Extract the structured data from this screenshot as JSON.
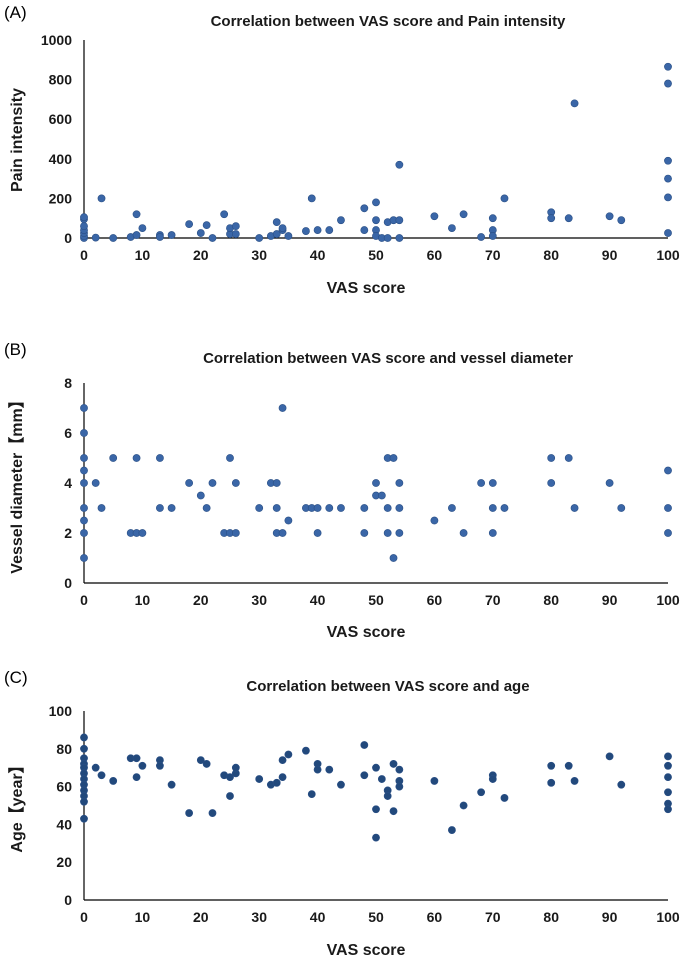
{
  "chart_data": [
    {
      "type": "scatter",
      "panel_label": "(A)",
      "title": "Correlation between VAS score and Pain intensity",
      "xlabel": "VAS score",
      "ylabel": "Pain intensity",
      "xlim": [
        0,
        100
      ],
      "ylim": [
        0,
        1000
      ],
      "xticks": [
        0,
        10,
        20,
        30,
        40,
        50,
        60,
        70,
        80,
        90,
        100
      ],
      "yticks": [
        0,
        200,
        400,
        600,
        800,
        1000
      ],
      "grid": false,
      "color": "#3a66a7",
      "points": [
        [
          0,
          0
        ],
        [
          0,
          10
        ],
        [
          0,
          25
        ],
        [
          0,
          40
        ],
        [
          0,
          60
        ],
        [
          0,
          95
        ],
        [
          0,
          105
        ],
        [
          2,
          2
        ],
        [
          3,
          200
        ],
        [
          5,
          0
        ],
        [
          8,
          5
        ],
        [
          9,
          15
        ],
        [
          9,
          120
        ],
        [
          10,
          50
        ],
        [
          13,
          15
        ],
        [
          13,
          5
        ],
        [
          15,
          15
        ],
        [
          18,
          70
        ],
        [
          20,
          25
        ],
        [
          21,
          65
        ],
        [
          22,
          0
        ],
        [
          24,
          120
        ],
        [
          25,
          20
        ],
        [
          25,
          50
        ],
        [
          26,
          20
        ],
        [
          26,
          60
        ],
        [
          30,
          0
        ],
        [
          32,
          10
        ],
        [
          33,
          20
        ],
        [
          33,
          80
        ],
        [
          34,
          40
        ],
        [
          34,
          50
        ],
        [
          35,
          10
        ],
        [
          38,
          35
        ],
        [
          39,
          200
        ],
        [
          40,
          40
        ],
        [
          42,
          40
        ],
        [
          44,
          90
        ],
        [
          48,
          150
        ],
        [
          48,
          40
        ],
        [
          50,
          180
        ],
        [
          50,
          90
        ],
        [
          50,
          40
        ],
        [
          50,
          10
        ],
        [
          51,
          0
        ],
        [
          52,
          80
        ],
        [
          52,
          0
        ],
        [
          53,
          90
        ],
        [
          54,
          90
        ],
        [
          54,
          0
        ],
        [
          54,
          370
        ],
        [
          60,
          110
        ],
        [
          63,
          50
        ],
        [
          65,
          120
        ],
        [
          68,
          5
        ],
        [
          70,
          100
        ],
        [
          70,
          40
        ],
        [
          70,
          10
        ],
        [
          72,
          200
        ],
        [
          80,
          130
        ],
        [
          80,
          100
        ],
        [
          83,
          100
        ],
        [
          84,
          680
        ],
        [
          90,
          110
        ],
        [
          92,
          90
        ],
        [
          100,
          865
        ],
        [
          100,
          780
        ],
        [
          100,
          390
        ],
        [
          100,
          300
        ],
        [
          100,
          205
        ],
        [
          100,
          25
        ]
      ]
    },
    {
      "type": "scatter",
      "panel_label": "(B)",
      "title": "Correlation between VAS score and vessel diameter",
      "xlabel": "VAS score",
      "ylabel": "Vessel diameter【mm】",
      "xlim": [
        0,
        100
      ],
      "ylim": [
        0,
        8
      ],
      "xticks": [
        0,
        10,
        20,
        30,
        40,
        50,
        60,
        70,
        80,
        90,
        100
      ],
      "yticks": [
        0,
        2,
        4,
        6,
        8
      ],
      "grid": false,
      "color": "#3a66a7",
      "points": [
        [
          0,
          1
        ],
        [
          0,
          2
        ],
        [
          0,
          2.5
        ],
        [
          0,
          3
        ],
        [
          0,
          4
        ],
        [
          0,
          4.5
        ],
        [
          0,
          5
        ],
        [
          0,
          6
        ],
        [
          0,
          7
        ],
        [
          2,
          4
        ],
        [
          3,
          3
        ],
        [
          5,
          5
        ],
        [
          8,
          2
        ],
        [
          9,
          2
        ],
        [
          9,
          5
        ],
        [
          10,
          2
        ],
        [
          13,
          5
        ],
        [
          13,
          3
        ],
        [
          15,
          3
        ],
        [
          18,
          4
        ],
        [
          20,
          3.5
        ],
        [
          21,
          3
        ],
        [
          22,
          4
        ],
        [
          24,
          2
        ],
        [
          25,
          5
        ],
        [
          25,
          2
        ],
        [
          26,
          2
        ],
        [
          26,
          4
        ],
        [
          30,
          3
        ],
        [
          32,
          4
        ],
        [
          33,
          4
        ],
        [
          33,
          3
        ],
        [
          33,
          2
        ],
        [
          34,
          2
        ],
        [
          34,
          7
        ],
        [
          35,
          2.5
        ],
        [
          38,
          3
        ],
        [
          39,
          3
        ],
        [
          40,
          3
        ],
        [
          40,
          2
        ],
        [
          42,
          3
        ],
        [
          44,
          3
        ],
        [
          48,
          3
        ],
        [
          48,
          2
        ],
        [
          50,
          4
        ],
        [
          50,
          3.5
        ],
        [
          51,
          3.5
        ],
        [
          52,
          5
        ],
        [
          52,
          3
        ],
        [
          52,
          2
        ],
        [
          53,
          5
        ],
        [
          53,
          1
        ],
        [
          54,
          4
        ],
        [
          54,
          3
        ],
        [
          54,
          2
        ],
        [
          60,
          2.5
        ],
        [
          63,
          3
        ],
        [
          65,
          2
        ],
        [
          68,
          4
        ],
        [
          70,
          4
        ],
        [
          70,
          3
        ],
        [
          70,
          2
        ],
        [
          72,
          3
        ],
        [
          80,
          5
        ],
        [
          80,
          4
        ],
        [
          83,
          5
        ],
        [
          84,
          3
        ],
        [
          90,
          4
        ],
        [
          92,
          3
        ],
        [
          100,
          4.5
        ],
        [
          100,
          3
        ],
        [
          100,
          2
        ]
      ]
    },
    {
      "type": "scatter",
      "panel_label": "(C)",
      "title": "Correlation between VAS score and age",
      "xlabel": "VAS score",
      "ylabel": "Age【year】",
      "xlim": [
        0,
        100
      ],
      "ylim": [
        0,
        100
      ],
      "xticks": [
        0,
        10,
        20,
        30,
        40,
        50,
        60,
        70,
        80,
        90,
        100
      ],
      "yticks": [
        0,
        20,
        40,
        60,
        80,
        100
      ],
      "grid": false,
      "color": "#22497c",
      "points": [
        [
          0,
          86
        ],
        [
          0,
          80
        ],
        [
          0,
          75
        ],
        [
          0,
          72
        ],
        [
          0,
          70
        ],
        [
          0,
          67
        ],
        [
          0,
          64
        ],
        [
          0,
          61
        ],
        [
          0,
          58
        ],
        [
          0,
          55
        ],
        [
          0,
          52
        ],
        [
          0,
          43
        ],
        [
          2,
          70
        ],
        [
          3,
          66
        ],
        [
          5,
          63
        ],
        [
          8,
          75
        ],
        [
          9,
          75
        ],
        [
          9,
          65
        ],
        [
          10,
          71
        ],
        [
          13,
          74
        ],
        [
          13,
          71
        ],
        [
          15,
          61
        ],
        [
          18,
          46
        ],
        [
          20,
          74
        ],
        [
          21,
          72
        ],
        [
          22,
          46
        ],
        [
          24,
          66
        ],
        [
          25,
          65
        ],
        [
          25,
          55
        ],
        [
          26,
          67
        ],
        [
          26,
          70
        ],
        [
          30,
          64
        ],
        [
          32,
          61
        ],
        [
          33,
          62
        ],
        [
          34,
          65
        ],
        [
          34,
          74
        ],
        [
          35,
          77
        ],
        [
          38,
          79
        ],
        [
          39,
          56
        ],
        [
          40,
          72
        ],
        [
          40,
          69
        ],
        [
          42,
          69
        ],
        [
          44,
          61
        ],
        [
          48,
          82
        ],
        [
          48,
          66
        ],
        [
          50,
          70
        ],
        [
          50,
          48
        ],
        [
          50,
          33
        ],
        [
          51,
          64
        ],
        [
          52,
          58
        ],
        [
          52,
          55
        ],
        [
          53,
          72
        ],
        [
          53,
          47
        ],
        [
          54,
          69
        ],
        [
          54,
          63
        ],
        [
          54,
          60
        ],
        [
          60,
          63
        ],
        [
          63,
          37
        ],
        [
          65,
          50
        ],
        [
          68,
          57
        ],
        [
          70,
          66
        ],
        [
          70,
          64
        ],
        [
          72,
          54
        ],
        [
          80,
          71
        ],
        [
          80,
          62
        ],
        [
          83,
          71
        ],
        [
          84,
          63
        ],
        [
          90,
          76
        ],
        [
          92,
          61
        ],
        [
          100,
          76
        ],
        [
          100,
          71
        ],
        [
          100,
          65
        ],
        [
          100,
          57
        ],
        [
          100,
          51
        ],
        [
          100,
          48
        ]
      ]
    }
  ]
}
